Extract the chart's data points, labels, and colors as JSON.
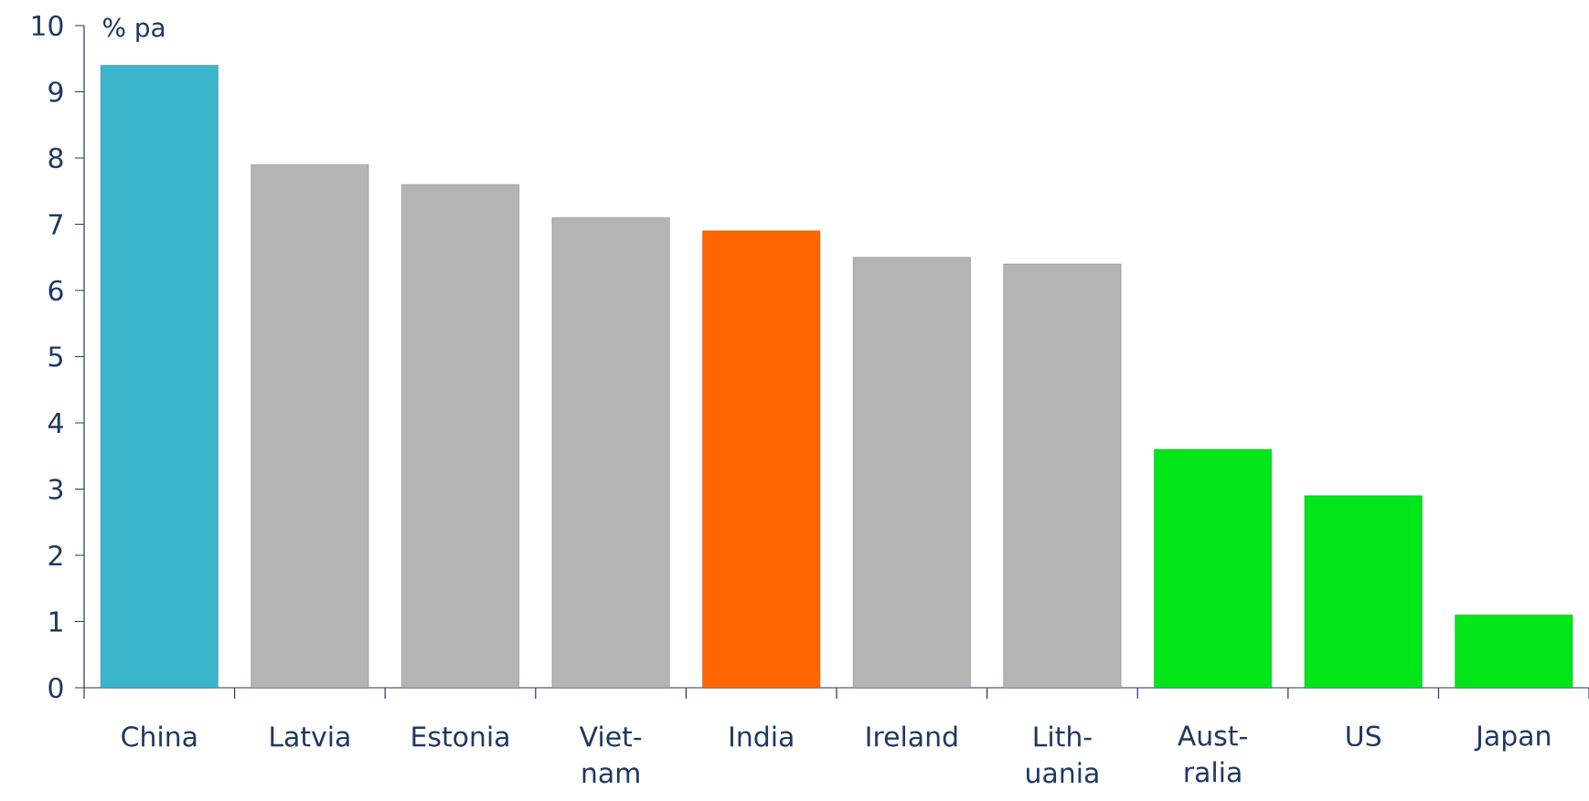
{
  "chart_data": {
    "type": "bar",
    "ylabel": "% pa",
    "categories": [
      "China",
      "Latvia",
      "Estonia",
      "Viet-nam",
      "India",
      "Ireland",
      "Lith-uania",
      "Aust-ralia",
      "US",
      "Japan"
    ],
    "values": [
      9.4,
      7.9,
      7.6,
      7.1,
      6.9,
      6.5,
      6.4,
      3.6,
      2.9,
      1.1
    ],
    "colors": [
      "#3bb5cc",
      "#b4b4b4",
      "#b4b4b4",
      "#b4b4b4",
      "#ff6600",
      "#b4b4b4",
      "#b4b4b4",
      "#00e619",
      "#00e619",
      "#00e619"
    ],
    "ylim": [
      0,
      10
    ],
    "yticks": [
      0,
      1,
      2,
      3,
      4,
      5,
      6,
      7,
      8,
      9,
      10
    ],
    "grid": false
  }
}
